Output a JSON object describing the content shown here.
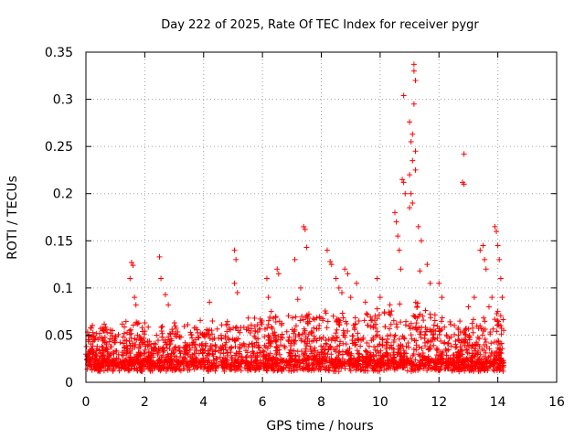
{
  "chart_data": {
    "type": "scatter",
    "title": "Day 222 of 2025, Rate Of TEC Index for receiver pygr",
    "xlabel": "GPS time / hours",
    "ylabel": "ROTI / TECUs",
    "xlim": [
      0,
      16
    ],
    "ylim": [
      0,
      0.35
    ],
    "xticks": [
      "0",
      "2",
      "4",
      "6",
      "8",
      "10",
      "12",
      "14",
      "16"
    ],
    "yticks": [
      "0",
      "0.05",
      "0.1",
      "0.15",
      "0.2",
      "0.25",
      "0.3",
      "0.35"
    ],
    "grid": true,
    "marker": "+",
    "color": "#ff0000",
    "data_range_hours": [
      0,
      14.2
    ],
    "baseline_roti": 0.015,
    "series": [
      {
        "name": "ROTI",
        "points": [
          [
            1.55,
            0.127
          ],
          [
            1.6,
            0.124
          ],
          [
            1.5,
            0.11
          ],
          [
            1.65,
            0.09
          ],
          [
            1.7,
            0.082
          ],
          [
            2.0,
            0.063
          ],
          [
            2.5,
            0.133
          ],
          [
            2.55,
            0.11
          ],
          [
            2.7,
            0.093
          ],
          [
            2.8,
            0.082
          ],
          [
            4.2,
            0.085
          ],
          [
            4.3,
            0.065
          ],
          [
            5.05,
            0.14
          ],
          [
            5.1,
            0.13
          ],
          [
            5.05,
            0.105
          ],
          [
            5.15,
            0.095
          ],
          [
            6.15,
            0.11
          ],
          [
            6.2,
            0.09
          ],
          [
            6.3,
            0.075
          ],
          [
            6.5,
            0.12
          ],
          [
            6.55,
            0.115
          ],
          [
            7.4,
            0.165
          ],
          [
            7.45,
            0.162
          ],
          [
            7.5,
            0.143
          ],
          [
            7.3,
            0.1
          ],
          [
            7.2,
            0.088
          ],
          [
            7.1,
            0.13
          ],
          [
            8.2,
            0.14
          ],
          [
            8.3,
            0.128
          ],
          [
            8.35,
            0.125
          ],
          [
            8.5,
            0.11
          ],
          [
            8.6,
            0.1
          ],
          [
            8.7,
            0.095
          ],
          [
            8.8,
            0.12
          ],
          [
            8.9,
            0.115
          ],
          [
            9.0,
            0.09
          ],
          [
            9.2,
            0.105
          ],
          [
            9.5,
            0.085
          ],
          [
            9.9,
            0.11
          ],
          [
            10.0,
            0.09
          ],
          [
            10.5,
            0.18
          ],
          [
            10.55,
            0.17
          ],
          [
            10.6,
            0.155
          ],
          [
            10.65,
            0.14
          ],
          [
            10.7,
            0.12
          ],
          [
            10.75,
            0.215
          ],
          [
            10.8,
            0.212
          ],
          [
            10.85,
            0.2
          ],
          [
            10.8,
            0.304
          ],
          [
            11.0,
            0.276
          ],
          [
            11.05,
            0.255
          ],
          [
            11.1,
            0.235
          ],
          [
            11.0,
            0.22
          ],
          [
            11.05,
            0.2
          ],
          [
            11.1,
            0.19
          ],
          [
            11.15,
            0.337
          ],
          [
            11.15,
            0.33
          ],
          [
            11.2,
            0.32
          ],
          [
            11.15,
            0.295
          ],
          [
            11.1,
            0.263
          ],
          [
            11.2,
            0.245
          ],
          [
            11.2,
            0.225
          ],
          [
            11.0,
            0.185
          ],
          [
            11.3,
            0.165
          ],
          [
            11.4,
            0.15
          ],
          [
            11.35,
            0.118
          ],
          [
            11.6,
            0.125
          ],
          [
            11.7,
            0.105
          ],
          [
            12.0,
            0.105
          ],
          [
            12.1,
            0.09
          ],
          [
            12.85,
            0.242
          ],
          [
            12.8,
            0.212
          ],
          [
            12.85,
            0.21
          ],
          [
            13.0,
            0.08
          ],
          [
            13.2,
            0.09
          ],
          [
            13.4,
            0.14
          ],
          [
            13.5,
            0.145
          ],
          [
            13.55,
            0.13
          ],
          [
            13.6,
            0.12
          ],
          [
            13.7,
            0.08
          ],
          [
            13.9,
            0.165
          ],
          [
            13.95,
            0.16
          ],
          [
            14.0,
            0.145
          ],
          [
            14.05,
            0.13
          ],
          [
            14.1,
            0.11
          ],
          [
            14.15,
            0.09
          ],
          [
            13.8,
            0.09
          ],
          [
            14.0,
            0.075
          ],
          [
            14.1,
            0.06
          ],
          [
            14.2,
            0.055
          ]
        ]
      }
    ]
  }
}
